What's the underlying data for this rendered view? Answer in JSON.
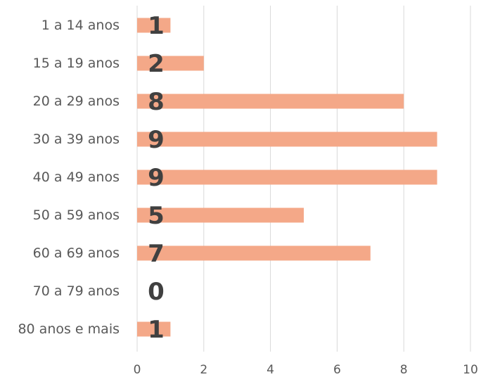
{
  "chart_data": {
    "type": "bar",
    "orientation": "horizontal",
    "categories": [
      "1 a 14 anos",
      "15 a 19 anos",
      "20 a 29 anos",
      "30 a 39 anos",
      "40 a 49 anos",
      "50 a 59 anos",
      "60 a 69 anos",
      "70 a 79 anos",
      "80 anos e mais"
    ],
    "values": [
      1,
      2,
      8,
      9,
      9,
      5,
      7,
      0,
      1
    ],
    "title": "",
    "xlabel": "",
    "ylabel": "",
    "xlim": [
      0,
      10
    ],
    "x_ticks": [
      0,
      2,
      4,
      6,
      8,
      10
    ],
    "grid": true,
    "legend": "none",
    "colors": {
      "bar": "#F4A888",
      "grid": "#D9D9D9",
      "label": "#595959",
      "data_label": "#404040"
    }
  }
}
